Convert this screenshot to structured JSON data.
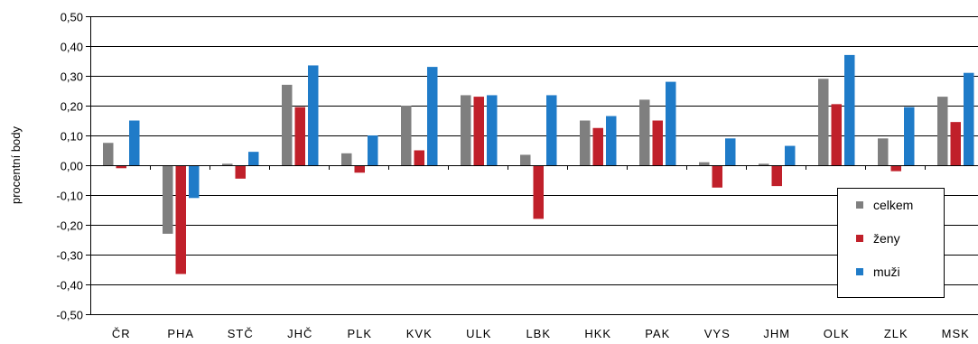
{
  "chart_data": {
    "type": "bar",
    "ylabel": "procentní body",
    "ylim": [
      -0.5,
      0.5
    ],
    "yticks": [
      "-0,50",
      "-0,40",
      "-0,30",
      "-0,20",
      "-0,10",
      "0,00",
      "0,10",
      "0,20",
      "0,30",
      "0,40",
      "0,50"
    ],
    "ytick_values": [
      -0.5,
      -0.4,
      -0.3,
      -0.2,
      -0.1,
      0,
      0.1,
      0.2,
      0.3,
      0.4,
      0.5
    ],
    "grid": true,
    "legend_position": "bottom-right",
    "categories": [
      "ČR",
      "PHA",
      "STČ",
      "JHČ",
      "PLK",
      "KVK",
      "ULK",
      "LBK",
      "HKK",
      "PAK",
      "VYS",
      "JHM",
      "OLK",
      "ZLK",
      "MSK"
    ],
    "series": [
      {
        "name": "celkem",
        "color": "#7f7f7f",
        "values": [
          0.075,
          -0.23,
          0.005,
          0.27,
          0.04,
          0.2,
          0.235,
          0.035,
          0.15,
          0.22,
          0.01,
          0.005,
          0.29,
          0.09,
          0.23
        ]
      },
      {
        "name": "ženy",
        "color": "#c0202a",
        "values": [
          -0.01,
          -0.365,
          -0.045,
          0.195,
          -0.025,
          0.05,
          0.23,
          -0.18,
          0.125,
          0.15,
          -0.075,
          -0.07,
          0.205,
          -0.02,
          0.145
        ]
      },
      {
        "name": "muži",
        "color": "#1f7bc8",
        "values": [
          0.15,
          -0.11,
          0.045,
          0.335,
          0.1,
          0.33,
          0.235,
          0.235,
          0.165,
          0.28,
          0.09,
          0.065,
          0.37,
          0.195,
          0.31
        ]
      }
    ]
  }
}
